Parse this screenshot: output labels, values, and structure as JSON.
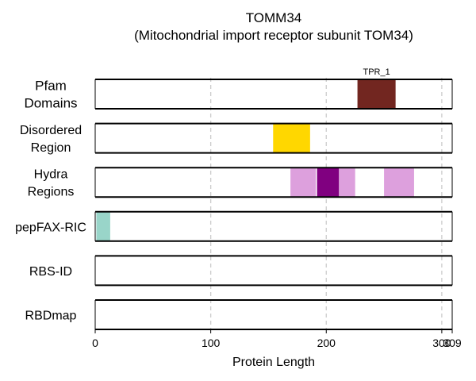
{
  "chart_data": {
    "type": "bar",
    "title": "TOMM34",
    "subtitle": "(Mitochondrial import receptor subunit TOM34)",
    "xlabel": "Protein Length",
    "xlim": [
      0,
      309
    ],
    "x_ticks": [
      {
        "value": 0,
        "label": "0"
      },
      {
        "value": 100,
        "label": "100"
      },
      {
        "value": 200,
        "label": "200"
      },
      {
        "value": 300,
        "label": "300"
      },
      {
        "value": 309,
        "label": "309"
      }
    ],
    "grid": "vertical dashed at 100, 200, 300",
    "tracks": [
      {
        "label_lines": [
          "Pfam",
          "Domains"
        ],
        "segments": [
          {
            "start": 227,
            "end": 260,
            "color": "#722620",
            "label": "TPR_1"
          }
        ]
      },
      {
        "label_lines": [
          "Disordered",
          "Region"
        ],
        "segments": [
          {
            "start": 154,
            "end": 186,
            "color": "#FFD700"
          }
        ]
      },
      {
        "label_lines": [
          "Hydra",
          "Regions"
        ],
        "segments": [
          {
            "start": 169,
            "end": 191,
            "color": "#DDA0DD"
          },
          {
            "start": 192,
            "end": 211,
            "color": "#800080"
          },
          {
            "start": 211,
            "end": 225,
            "color": "#DDA0DD"
          },
          {
            "start": 250,
            "end": 276,
            "color": "#DDA0DD"
          }
        ]
      },
      {
        "label_lines": [
          "pepFAX-RIC"
        ],
        "segments": [
          {
            "start": 1,
            "end": 13,
            "color": "#99D5C9"
          }
        ]
      },
      {
        "label_lines": [
          "RBS-ID"
        ],
        "segments": []
      },
      {
        "label_lines": [
          "RBDmap"
        ],
        "segments": []
      }
    ]
  }
}
